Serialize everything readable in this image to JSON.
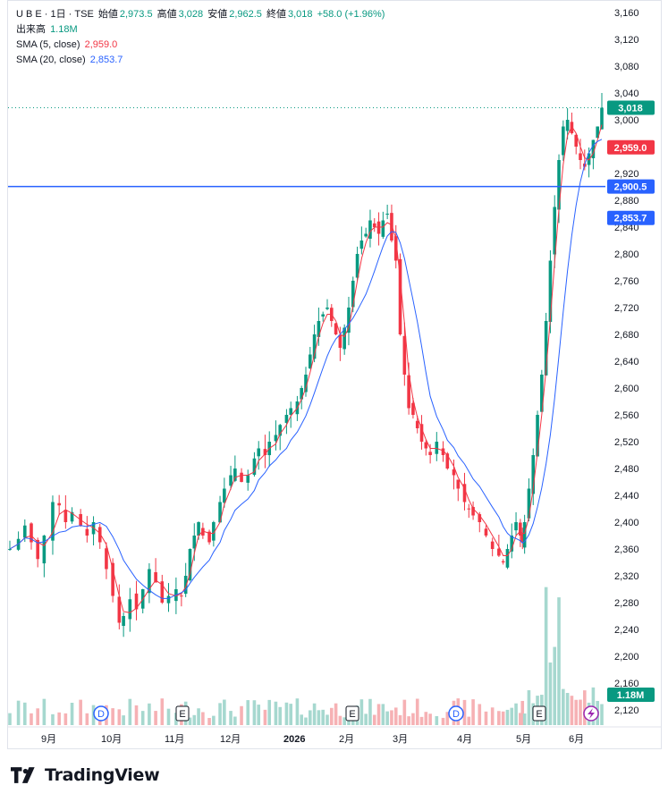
{
  "legend": {
    "symbol": "U B E · 1日 · TSE",
    "open_label": "始値",
    "open": "2,973.5",
    "high_label": "高値",
    "high": "3,028",
    "low_label": "安値",
    "low": "2,962.5",
    "close_label": "終値",
    "close": "3,018",
    "change": "+58.0 (+1.96%)",
    "volume_label": "出来高",
    "volume": "1.18M",
    "sma5_label": "SMA (5, close)",
    "sma5": "2,959.0",
    "sma20_label": "SMA (20, close)",
    "sma20": "2,853.7"
  },
  "price_badges": {
    "last": "3,018",
    "sma5": "2,959.0",
    "hline": "2,900.5",
    "sma20": "2,853.7",
    "volume": "1.18M"
  },
  "event_markers": [
    "D",
    "E",
    "E",
    "D",
    "E"
  ],
  "colors": {
    "up": "#089981",
    "down": "#f23645",
    "sma5": "#f23645",
    "sma20": "#2962ff",
    "hline": "#2962ff",
    "vol_up": "#a6d8cf",
    "vol_down": "#f6b1b4"
  },
  "branding": "TradingView",
  "chart_data": {
    "type": "candlestick",
    "yaxis_ticks": [
      "3,160",
      "3,120",
      "3,080",
      "3,040",
      "3,000",
      "2,960",
      "2,920",
      "2,880",
      "2,840",
      "2,800",
      "2,760",
      "2,720",
      "2,680",
      "2,640",
      "2,600",
      "2,560",
      "2,520",
      "2,480",
      "2,440",
      "2,400",
      "2,360",
      "2,320",
      "2,280",
      "2,240",
      "2,200",
      "2,160",
      "2,120"
    ],
    "xaxis_ticks": [
      "9月",
      "10月",
      "11月",
      "12月",
      "2026",
      "2月",
      "3月",
      "4月",
      "5月",
      "6月"
    ],
    "ylim": [
      2100,
      3175
    ],
    "horizontal_line": 2900.5,
    "last_close": 3018,
    "series": [
      {
        "name": "SMA (5, close)",
        "last": 2959.0
      },
      {
        "name": "SMA (20, close)",
        "last": 2853.7
      }
    ],
    "price_path": [
      [
        0,
        2360
      ],
      [
        8,
        2375
      ],
      [
        14,
        2395
      ],
      [
        20,
        2370
      ],
      [
        26,
        2345
      ],
      [
        32,
        2380
      ],
      [
        40,
        2430
      ],
      [
        46,
        2425
      ],
      [
        52,
        2400
      ],
      [
        58,
        2415
      ],
      [
        66,
        2395
      ],
      [
        72,
        2380
      ],
      [
        78,
        2400
      ],
      [
        84,
        2370
      ],
      [
        90,
        2330
      ],
      [
        96,
        2290
      ],
      [
        102,
        2250
      ],
      [
        106,
        2260
      ],
      [
        112,
        2285
      ],
      [
        118,
        2270
      ],
      [
        124,
        2300
      ],
      [
        130,
        2330
      ],
      [
        136,
        2310
      ],
      [
        142,
        2280
      ],
      [
        148,
        2290
      ],
      [
        155,
        2300
      ],
      [
        160,
        2290
      ],
      [
        164,
        2320
      ],
      [
        168,
        2360
      ],
      [
        172,
        2380
      ],
      [
        176,
        2400
      ],
      [
        180,
        2380
      ],
      [
        186,
        2370
      ],
      [
        190,
        2400
      ],
      [
        196,
        2430
      ],
      [
        200,
        2450
      ],
      [
        206,
        2470
      ],
      [
        210,
        2480
      ],
      [
        216,
        2460
      ],
      [
        222,
        2470
      ],
      [
        228,
        2495
      ],
      [
        232,
        2510
      ],
      [
        238,
        2500
      ],
      [
        242,
        2520
      ],
      [
        248,
        2530
      ],
      [
        252,
        2545
      ],
      [
        258,
        2560
      ],
      [
        262,
        2570
      ],
      [
        268,
        2580
      ],
      [
        272,
        2600
      ],
      [
        276,
        2620
      ],
      [
        280,
        2650
      ],
      [
        284,
        2680
      ],
      [
        288,
        2700
      ],
      [
        292,
        2710
      ],
      [
        296,
        2720
      ],
      [
        300,
        2700
      ],
      [
        304,
        2680
      ],
      [
        308,
        2660
      ],
      [
        312,
        2690
      ],
      [
        316,
        2720
      ],
      [
        320,
        2760
      ],
      [
        324,
        2800
      ],
      [
        328,
        2820
      ],
      [
        332,
        2830
      ],
      [
        336,
        2850
      ],
      [
        340,
        2840
      ],
      [
        344,
        2830
      ],
      [
        348,
        2850
      ],
      [
        352,
        2860
      ],
      [
        356,
        2820
      ],
      [
        360,
        2790
      ],
      [
        364,
        2680
      ],
      [
        368,
        2620
      ],
      [
        372,
        2570
      ],
      [
        376,
        2560
      ],
      [
        380,
        2540
      ],
      [
        384,
        2520
      ],
      [
        388,
        2510
      ],
      [
        392,
        2500
      ],
      [
        398,
        2520
      ],
      [
        404,
        2500
      ],
      [
        408,
        2480
      ],
      [
        414,
        2470
      ],
      [
        418,
        2450
      ],
      [
        424,
        2430
      ],
      [
        428,
        2420
      ],
      [
        432,
        2410
      ],
      [
        438,
        2400
      ],
      [
        444,
        2380
      ],
      [
        450,
        2360
      ],
      [
        456,
        2350
      ],
      [
        460,
        2340
      ],
      [
        464,
        2360
      ],
      [
        468,
        2380
      ],
      [
        472,
        2400
      ],
      [
        476,
        2380
      ],
      [
        478,
        2370
      ],
      [
        480,
        2400
      ],
      [
        484,
        2450
      ],
      [
        488,
        2500
      ],
      [
        492,
        2560
      ],
      [
        496,
        2620
      ],
      [
        500,
        2700
      ],
      [
        504,
        2790
      ],
      [
        508,
        2870
      ],
      [
        512,
        2940
      ],
      [
        516,
        2990
      ],
      [
        520,
        3000
      ],
      [
        524,
        2980
      ],
      [
        528,
        2960
      ],
      [
        532,
        2940
      ],
      [
        536,
        2930
      ],
      [
        540,
        2950
      ],
      [
        544,
        2970
      ],
      [
        548,
        2990
      ],
      [
        552,
        3018
      ]
    ]
  }
}
